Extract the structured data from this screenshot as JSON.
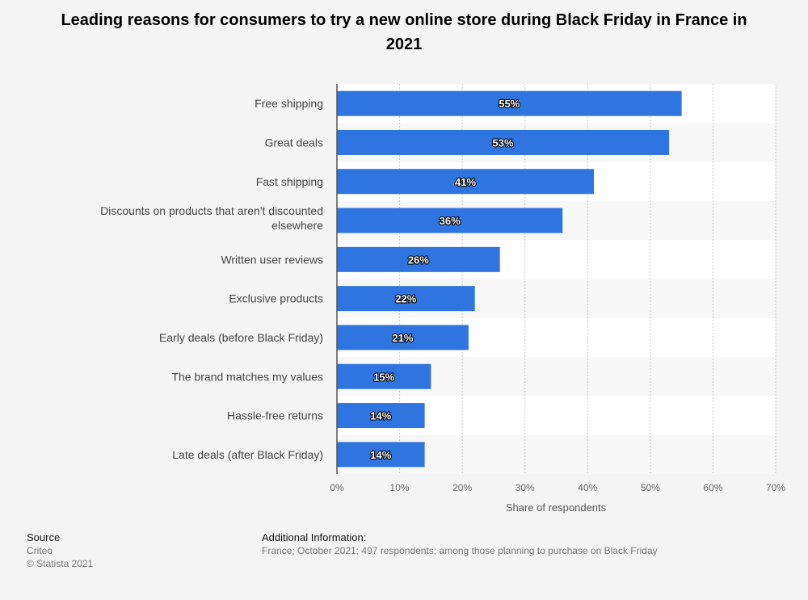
{
  "chart_data": {
    "type": "bar",
    "orientation": "horizontal",
    "title": "Leading reasons for consumers to try a new online store during Black Friday in France in 2021",
    "categories": [
      "Free shipping",
      "Great deals",
      "Fast shipping",
      "Discounts on products that aren't discounted elsewhere",
      "Written user reviews",
      "Exclusive products",
      "Early deals (before Black Friday)",
      "The brand matches my values",
      "Hassle-free returns",
      "Late deals (after Black Friday)"
    ],
    "values": [
      55,
      53,
      41,
      36,
      26,
      22,
      21,
      15,
      14,
      14
    ],
    "value_labels": [
      "55%",
      "53%",
      "41%",
      "36%",
      "26%",
      "22%",
      "21%",
      "15%",
      "14%",
      "14%"
    ],
    "xlabel": "Share of respondents",
    "xlim": [
      0,
      70
    ],
    "xticks": [
      "0%",
      "10%",
      "20%",
      "30%",
      "40%",
      "50%",
      "60%",
      "70%"
    ],
    "grid": true,
    "bar_color": "#2f75e0"
  },
  "footer": {
    "source_heading": "Source",
    "source_name": "Criteo",
    "copyright": "© Statista 2021",
    "info_heading": "Additional Information:",
    "info_text": "France; October 2021; 497 respondents; among those planning to purchase on Black Friday"
  }
}
